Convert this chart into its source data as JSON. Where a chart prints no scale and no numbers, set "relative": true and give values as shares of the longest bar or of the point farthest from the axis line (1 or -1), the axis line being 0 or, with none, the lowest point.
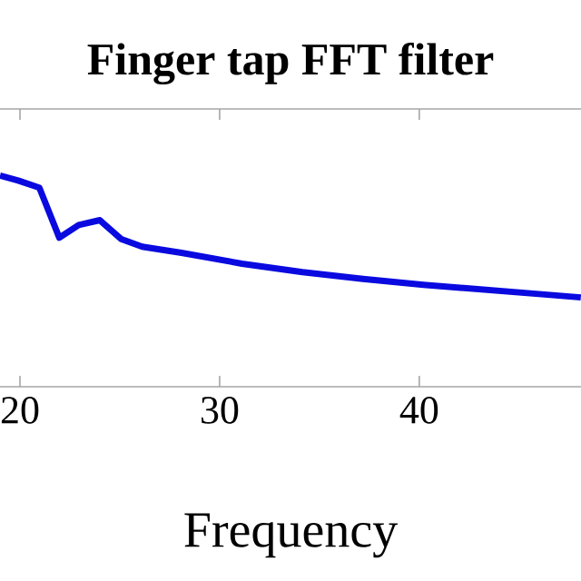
{
  "chart_data": {
    "type": "line",
    "title": "Finger tap FFT filter",
    "xlabel": "Frequency",
    "relative": true,
    "x": [
      19.0,
      19.91,
      20.97,
      21.97,
      22.94,
      24.0,
      25.06,
      26.12,
      28.09,
      31.12,
      34.15,
      37.18,
      40.21,
      43.24,
      46.27,
      48.09
    ],
    "series": [
      {
        "color": "#0a0ae0",
        "values": [
          1.0,
          0.977,
          0.943,
          0.706,
          0.766,
          0.789,
          0.7,
          0.663,
          0.634,
          0.583,
          0.543,
          0.511,
          0.483,
          0.46,
          0.437,
          0.423
        ]
      }
    ],
    "xlim": [
      19.0,
      48.1
    ],
    "xticks": [
      20,
      30,
      40
    ]
  }
}
